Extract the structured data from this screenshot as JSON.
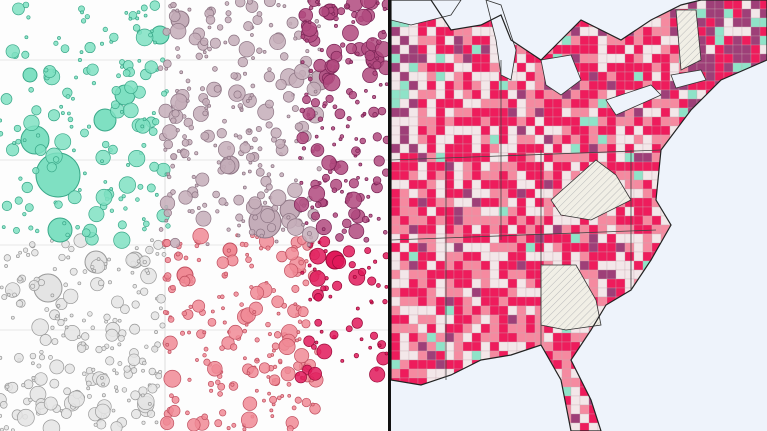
{
  "colors": {
    "teal": "#7fe0c2",
    "mauve": "#c4adb9",
    "purple": "#b0497e",
    "gray": "#e4e4e4",
    "pink": "#f08a95",
    "crimson": "#e0195a",
    "map_background": "#eef3fb",
    "county_light": "#f3e7e9",
    "county_pink": "#f58aa0",
    "county_crimson": "#ee1c5c",
    "county_purple": "#9e3f78",
    "county_teal": "#8fe3c8",
    "hatched_state": "#f1efe6",
    "divider": "#111111"
  }
}
